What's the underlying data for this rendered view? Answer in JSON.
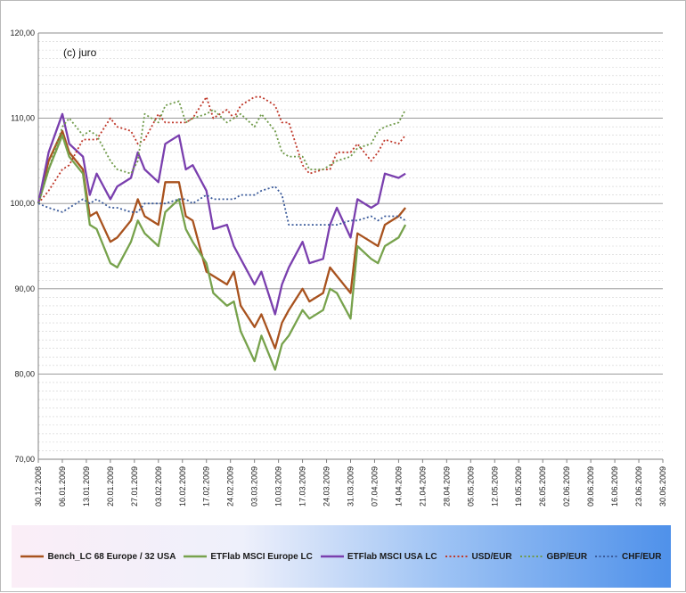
{
  "chart_data": {
    "type": "line",
    "title": "",
    "annotation": "(c) juro",
    "xlabel": "",
    "ylabel": "",
    "ylim": [
      70,
      120
    ],
    "yticks": [
      "70,00",
      "80,00",
      "90,00",
      "100,00",
      "110,00",
      "120,00"
    ],
    "y_minor_step": 1,
    "grid": true,
    "legend_position": "bottom",
    "x_start": "2008-12-30",
    "x_end": "2009-06-30",
    "x_tick_labels": [
      "30.12.2008",
      "06.01.2009",
      "13.01.2009",
      "20.01.2009",
      "27.01.2009",
      "03.02.2009",
      "10.02.2009",
      "17.02.2009",
      "24.02.2009",
      "03.03.2009",
      "10.03.2009",
      "17.03.2009",
      "24.03.2009",
      "31.03.2009",
      "07.04.2009",
      "14.04.2009",
      "21.04.2009",
      "28.04.2009",
      "05.05.2009",
      "12.05.2009",
      "19.05.2009",
      "26.05.2009",
      "02.06.2009",
      "09.06.2009",
      "16.06.2009",
      "23.06.2009",
      "30.06.2009"
    ],
    "x": [
      "2008-12-30",
      "2009-01-02",
      "2009-01-06",
      "2009-01-08",
      "2009-01-12",
      "2009-01-14",
      "2009-01-16",
      "2009-01-20",
      "2009-01-22",
      "2009-01-26",
      "2009-01-28",
      "2009-01-30",
      "2009-02-03",
      "2009-02-05",
      "2009-02-09",
      "2009-02-11",
      "2009-02-13",
      "2009-02-17",
      "2009-02-19",
      "2009-02-23",
      "2009-02-25",
      "2009-02-27",
      "2009-03-03",
      "2009-03-05",
      "2009-03-09",
      "2009-03-11",
      "2009-03-13",
      "2009-03-17",
      "2009-03-19",
      "2009-03-23",
      "2009-03-25",
      "2009-03-27",
      "2009-03-31",
      "2009-04-02",
      "2009-04-06",
      "2009-04-08",
      "2009-04-10",
      "2009-04-14",
      "2009-04-16"
    ],
    "series": [
      {
        "name": "Bench_LC  68 Europe / 32 USA",
        "color": "#a8521e",
        "dash": "solid",
        "values": [
          100,
          105,
          108.5,
          106,
          104,
          98.5,
          99,
          95.5,
          96,
          98,
          100.5,
          98.5,
          97.5,
          102.5,
          102.5,
          98.5,
          98,
          92,
          91.5,
          90.5,
          92,
          88,
          85.5,
          87,
          83,
          86,
          87.5,
          90,
          88.5,
          89.5,
          92.5,
          91.5,
          89.5,
          96.5,
          95.5,
          95,
          97.5,
          98.5,
          99.5
        ]
      },
      {
        "name": "ETFlab MSCI Europe LC",
        "color": "#77a24c",
        "dash": "solid",
        "values": [
          100,
          104,
          108,
          105.5,
          103.5,
          97.5,
          97,
          93,
          92.5,
          95.5,
          98,
          96.5,
          95,
          99,
          100.5,
          97,
          95.5,
          93,
          89.5,
          88,
          88.5,
          85,
          81.5,
          84.5,
          80.5,
          83.5,
          84.5,
          87.5,
          86.5,
          87.5,
          90,
          89.5,
          86.5,
          95,
          93.5,
          93,
          95,
          96,
          97.5
        ]
      },
      {
        "name": "ETFlab MSCI USA LC",
        "color": "#7a3fae",
        "dash": "solid",
        "values": [
          100,
          106,
          110.5,
          107,
          105.5,
          101,
          103.5,
          100.5,
          102,
          103,
          106,
          104,
          102.5,
          107,
          108,
          104,
          104.5,
          101.5,
          97,
          97.5,
          95,
          93.5,
          90.5,
          92,
          87,
          90.5,
          92.5,
          95.5,
          93,
          93.5,
          97.5,
          99.5,
          96,
          100.5,
          99.5,
          100,
          103.5,
          103,
          103.5
        ]
      },
      {
        "name": "USD/EUR",
        "color": "#c0392b",
        "dash": "dotted",
        "values": [
          100,
          101.5,
          104,
          104.5,
          107.5,
          107.5,
          107.5,
          110,
          109,
          108.5,
          107,
          107.5,
          110.5,
          109.5,
          109.5,
          109.5,
          110,
          112.5,
          110,
          111,
          110,
          111.5,
          112.5,
          112.5,
          111.5,
          109.5,
          109.5,
          104.5,
          103.5,
          104,
          104,
          106,
          106,
          107,
          105,
          106,
          107.5,
          107,
          108
        ]
      },
      {
        "name": "GBP/EUR",
        "color": "#6f9a49",
        "dash": "dotted",
        "values": [
          100,
          104,
          109,
          110,
          108,
          108.5,
          108,
          105,
          104,
          103.5,
          105,
          110.5,
          109.5,
          111.5,
          112,
          109.5,
          110,
          110.5,
          111,
          109.5,
          110,
          110.5,
          109,
          110.5,
          108.5,
          106,
          105.5,
          105.5,
          104,
          104,
          104.5,
          105,
          105.5,
          106.5,
          107,
          108.5,
          109,
          109.5,
          111
        ]
      },
      {
        "name": "CHF/EUR",
        "color": "#3a5a9a",
        "dash": "dotted",
        "values": [
          100,
          99.5,
          99,
          99.5,
          100.5,
          100,
          100.5,
          99.5,
          99.5,
          99,
          99,
          100,
          100,
          100,
          100.5,
          100.5,
          100,
          101,
          100.5,
          100.5,
          100.5,
          101,
          101,
          101.5,
          102,
          101,
          97.5,
          97.5,
          97.5,
          97.5,
          97.5,
          97.5,
          98,
          98,
          98.5,
          98,
          98.5,
          98.5,
          98
        ]
      }
    ]
  }
}
